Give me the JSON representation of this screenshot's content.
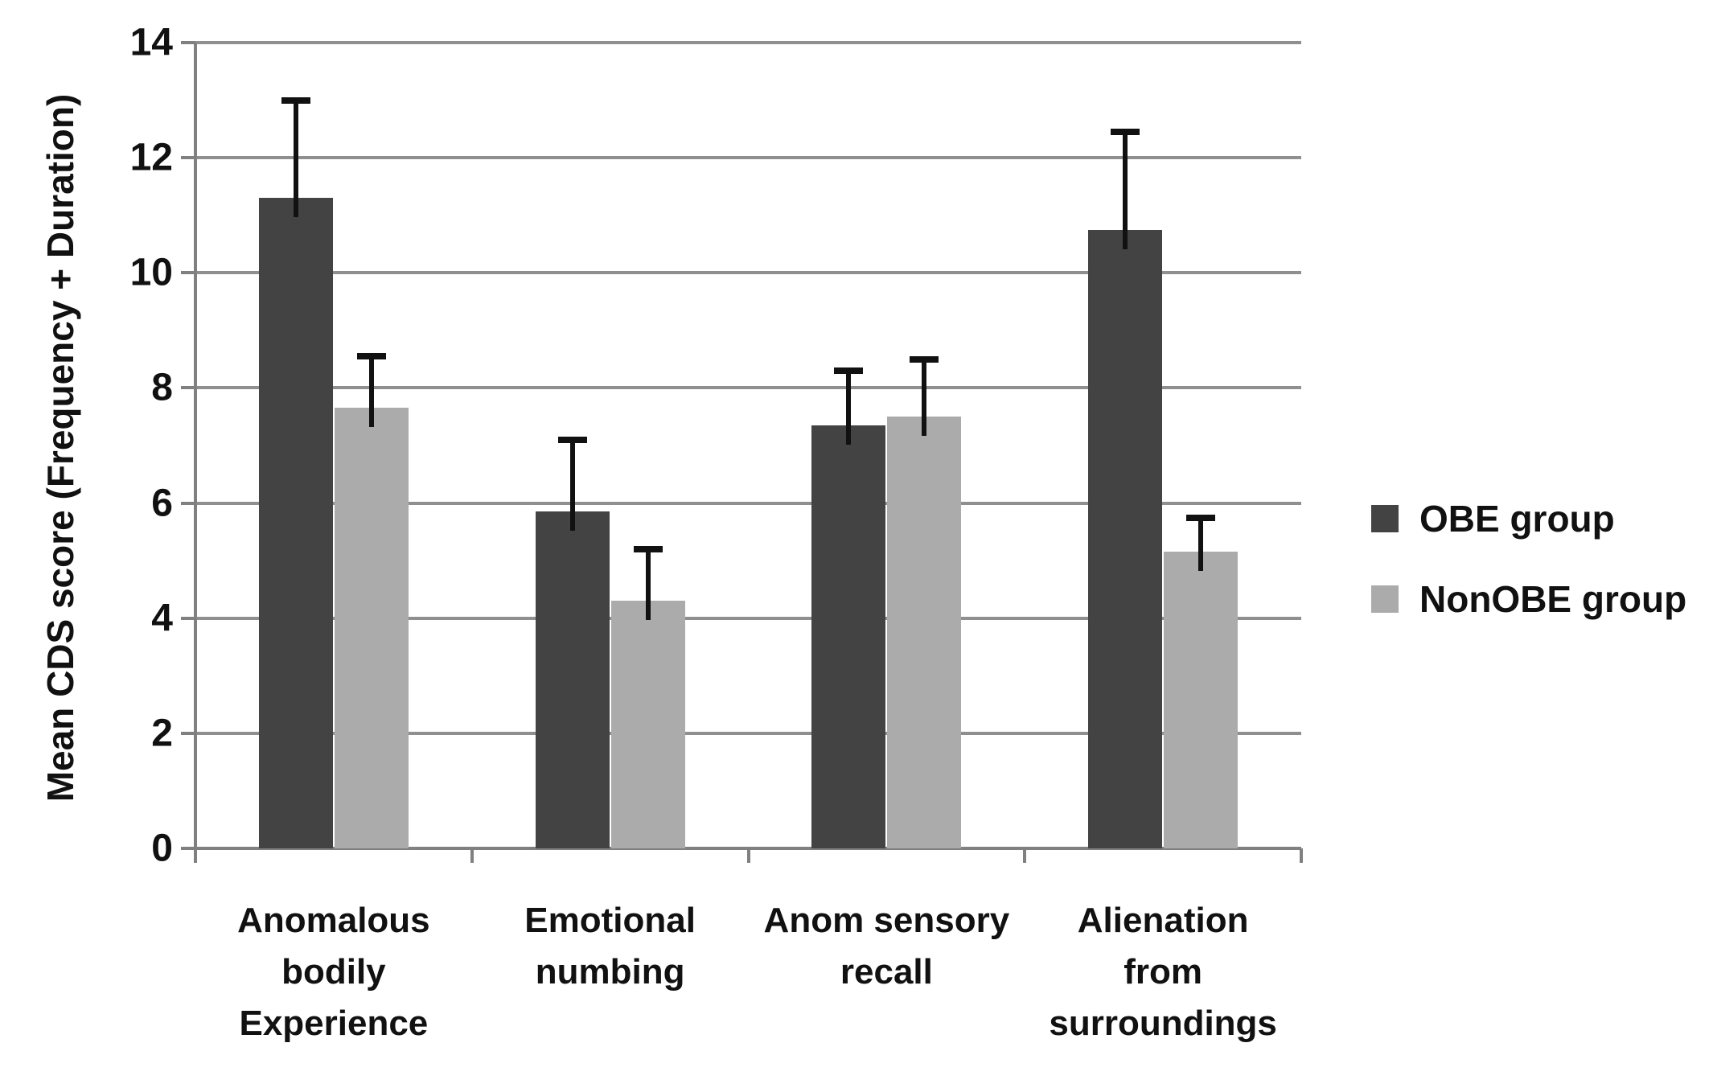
{
  "chart_data": {
    "type": "bar",
    "title": "",
    "ylabel": "Mean CDS score (Frequency + Duration)",
    "xlabel": "",
    "ylim": [
      0,
      14
    ],
    "yticks": [
      0,
      2,
      4,
      6,
      8,
      10,
      12,
      14
    ],
    "grid": true,
    "error_bars": "upper",
    "legend_position": "right",
    "categories": [
      "Anomalous bodily Experience",
      "Emotional numbing",
      "Anom sensory recall",
      "Alienation from surroundings"
    ],
    "category_lines": [
      [
        "Anomalous",
        "bodily",
        "Experience"
      ],
      [
        "Emotional",
        "numbing"
      ],
      [
        "Anom sensory",
        "recall"
      ],
      [
        "Alienation",
        "from",
        "surroundings"
      ]
    ],
    "series": [
      {
        "name": "OBE group",
        "color": "#434343",
        "values": [
          11.3,
          5.85,
          7.35,
          10.75
        ],
        "errors": [
          1.75,
          1.3,
          1.0,
          1.75
        ]
      },
      {
        "name": "NonOBE group",
        "color": "#ABABAB",
        "values": [
          7.65,
          4.3,
          7.5,
          5.15
        ],
        "errors": [
          0.95,
          0.95,
          1.05,
          0.65
        ]
      }
    ]
  },
  "colors": {
    "background": "#ffffff",
    "gridline": "#8f8f8f",
    "axis": "#808080",
    "error_bar": "#111111",
    "text": "#111111"
  }
}
